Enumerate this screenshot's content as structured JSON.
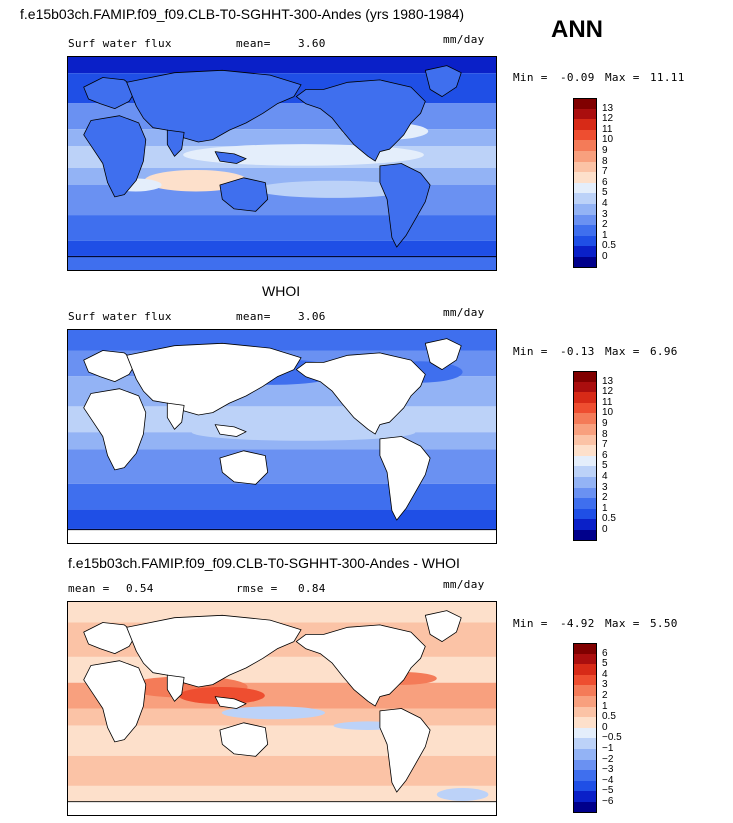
{
  "header": {
    "title": "f.e15b03ch.FAMIP.f09_f09.CLB-T0-SGHHT-300-Andes (yrs 1980-1984)",
    "season": "ANN"
  },
  "colors": {
    "positive_scale": [
      "#00008b",
      "#0a20c8",
      "#1f4fe6",
      "#3f6fee",
      "#6a91f2",
      "#93b3f5",
      "#bcd2f8",
      "#e4eefb",
      "#fde0cb",
      "#fbc3a6",
      "#f8a07e",
      "#f47b58",
      "#ee4e30",
      "#d72a17",
      "#aa0e0e",
      "#800000"
    ],
    "diff_scale": [
      "#00008b",
      "#0a20c8",
      "#1f4fe6",
      "#3f6fee",
      "#6a91f2",
      "#93b3f5",
      "#bcd2f8",
      "#e4eefb",
      "#ffffff",
      "#fde0cb",
      "#fbc3a6",
      "#f8a07e",
      "#f47b58",
      "#ee4e30",
      "#d72a17",
      "#aa0e0e",
      "#800000"
    ]
  },
  "panels": [
    {
      "label": "Surf water flux",
      "mean_label": "mean=",
      "mean": "3.60",
      "units": "mm/day",
      "min_label": "Min =",
      "min": "-0.09",
      "max_label": "Max =",
      "max": "11.11",
      "cbar_levels": [
        "13",
        "12",
        "11",
        "10",
        "9",
        "8",
        "7",
        "6",
        "5",
        "4",
        "3",
        "2",
        "1",
        "0.5",
        "0"
      ]
    },
    {
      "title": "WHOI",
      "label": "Surf water flux",
      "mean_label": "mean=",
      "mean": "3.06",
      "units": "mm/day",
      "min_label": "Min =",
      "min": "-0.13",
      "max_label": "Max =",
      "max": "6.96",
      "cbar_levels": [
        "13",
        "12",
        "11",
        "10",
        "9",
        "8",
        "7",
        "6",
        "5",
        "4",
        "3",
        "2",
        "1",
        "0.5",
        "0"
      ]
    },
    {
      "title": "f.e15b03ch.FAMIP.f09_f09.CLB-T0-SGHHT-300-Andes - WHOI",
      "mean_label": "mean =",
      "mean": "0.54",
      "rmse_label": "rmse =",
      "rmse": "0.84",
      "units": "mm/day",
      "min_label": "Min =",
      "min": "-4.92",
      "max_label": "Max =",
      "max": "5.50",
      "cbar_levels": [
        "6",
        "5",
        "4",
        "3",
        "2",
        "1",
        "0.5",
        "0",
        "-0.5",
        "-1",
        "-2",
        "-3",
        "-4",
        "-5",
        "-6"
      ]
    }
  ],
  "chart_data": [
    {
      "type": "heatmap",
      "title": "f.e15b03ch.FAMIP.f09_f09.CLB-T0-SGHHT-300-Andes (yrs 1980-1984)",
      "field": "Surf water flux",
      "units": "mm/day",
      "mean": 3.6,
      "min": -0.09,
      "max": 11.11,
      "colorbar_levels": [
        0,
        0.5,
        1,
        2,
        3,
        4,
        5,
        6,
        7,
        8,
        9,
        10,
        11,
        12,
        13
      ],
      "domain": "global, land included"
    },
    {
      "type": "heatmap",
      "title": "WHOI",
      "field": "Surf water flux",
      "units": "mm/day",
      "mean": 3.06,
      "min": -0.13,
      "max": 6.96,
      "colorbar_levels": [
        0,
        0.5,
        1,
        2,
        3,
        4,
        5,
        6,
        7,
        8,
        9,
        10,
        11,
        12,
        13
      ],
      "domain": "ocean only (land masked white)"
    },
    {
      "type": "heatmap",
      "title": "f.e15b03ch.FAMIP.f09_f09.CLB-T0-SGHHT-300-Andes - WHOI",
      "units": "mm/day",
      "mean": 0.54,
      "rmse": 0.84,
      "min": -4.92,
      "max": 5.5,
      "colorbar_levels": [
        -6,
        -5,
        -4,
        -3,
        -2,
        -1,
        -0.5,
        0,
        0.5,
        1,
        2,
        3,
        4,
        5,
        6
      ],
      "domain": "ocean only (land masked white)"
    }
  ]
}
